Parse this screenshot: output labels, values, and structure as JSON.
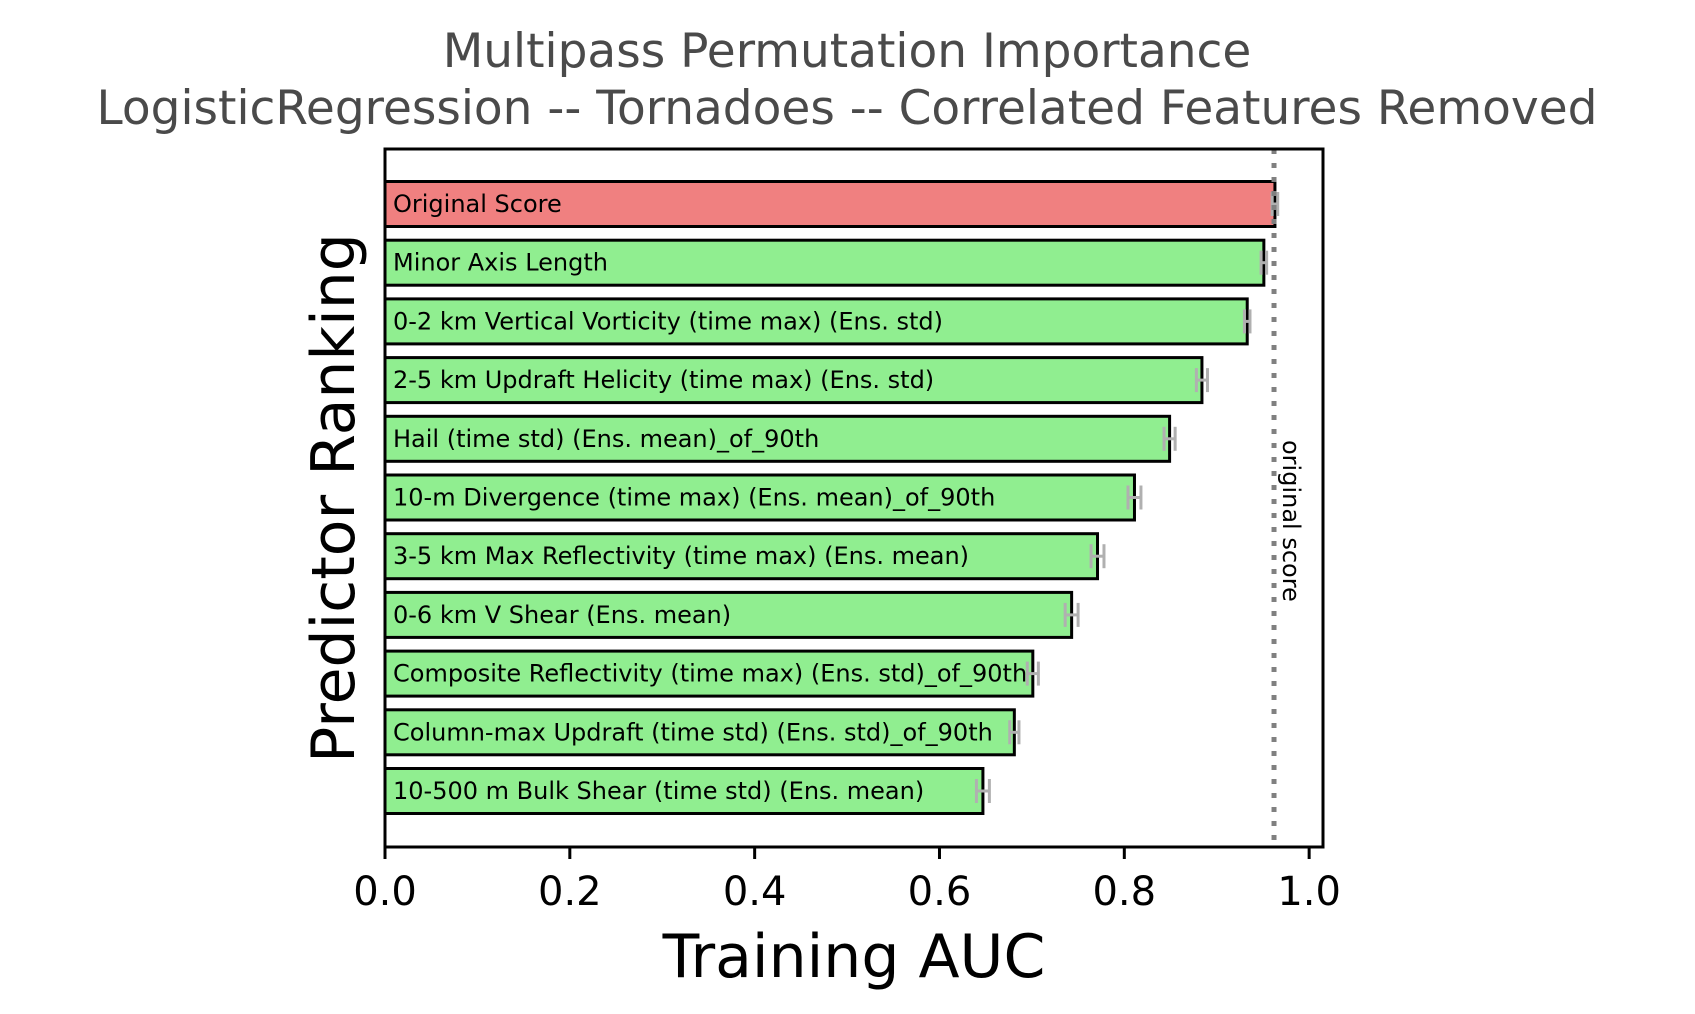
{
  "chart_data": {
    "type": "bar",
    "orientation": "horizontal",
    "title": "Multipass Permutation Importance",
    "subtitle": "LogisticRegression -- Tornadoes -- Correlated Features Removed",
    "xlabel": "Training AUC",
    "ylabel": "Predictor Ranking",
    "xlim": [
      0.0,
      1.015
    ],
    "xticks": [
      "0.0",
      "0.2",
      "0.4",
      "0.6",
      "0.8",
      "1.0"
    ],
    "grid": false,
    "reference_line": {
      "value": 0.962,
      "label": "original score",
      "style": "dotted",
      "color": "#808080"
    },
    "categories": [
      "Original Score",
      "Minor Axis Length",
      "0-2 km Vertical Vorticity (time max) (Ens. std)",
      "2-5 km Updraft Helicity (time max) (Ens. std)",
      "Hail (time std) (Ens. mean)_of_90th",
      "10-m Divergence (time max) (Ens. mean)_of_90th",
      "3-5 km Max Reflectivity (time max) (Ens. mean)",
      "0-6 km V Shear (Ens. mean)",
      "Composite Reflectivity (time max) (Ens. std)_of_90th",
      "Column-max Updraft (time std) (Ens. std)_of_90th",
      "10-500 m Bulk Shear (time std) (Ens. mean)"
    ],
    "values": [
      0.963,
      0.951,
      0.933,
      0.884,
      0.849,
      0.811,
      0.771,
      0.743,
      0.701,
      0.681,
      0.647
    ],
    "errors": [
      0.003,
      0.003,
      0.003,
      0.006,
      0.006,
      0.007,
      0.007,
      0.007,
      0.006,
      0.005,
      0.007
    ],
    "colors": {
      "original": "#f08080",
      "predictors": "#90ee90",
      "edge": "#000000",
      "errorbar": "#b0b0b0"
    }
  }
}
